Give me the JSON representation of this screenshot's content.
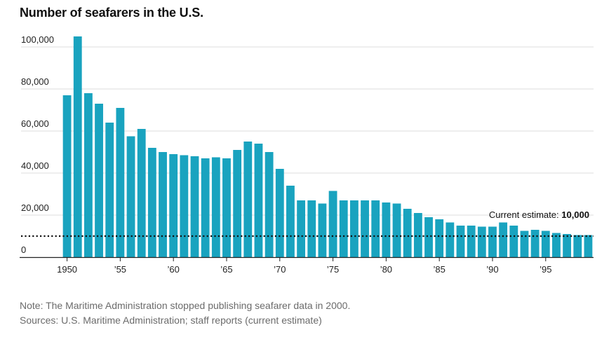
{
  "title": "Number of seafarers in the U.S.",
  "notes": {
    "note": "Note: The Maritime Administration stopped publishing seafarer data in 2000.",
    "sources": "Sources: U.S. Maritime Administration; staff reports (current estimate)"
  },
  "chart_data": {
    "type": "bar",
    "title": "Number of seafarers in the U.S.",
    "xlabel": "",
    "ylabel": "",
    "ylim": [
      0,
      100000
    ],
    "yticks": [
      0,
      20000,
      40000,
      60000,
      80000,
      100000
    ],
    "ytick_labels": [
      "0",
      "20,000",
      "40,000",
      "60,000",
      "80,000",
      "100,000"
    ],
    "x_tick_labels": [
      {
        "year": 1950,
        "label": "1950"
      },
      {
        "year": 1955,
        "label": "’55"
      },
      {
        "year": 1960,
        "label": "’60"
      },
      {
        "year": 1965,
        "label": "’65"
      },
      {
        "year": 1970,
        "label": "’70"
      },
      {
        "year": 1975,
        "label": "’75"
      },
      {
        "year": 1980,
        "label": "’80"
      },
      {
        "year": 1985,
        "label": "’85"
      },
      {
        "year": 1990,
        "label": "’90"
      },
      {
        "year": 1995,
        "label": "’95"
      }
    ],
    "grid": true,
    "bar_color": "#19a3bf",
    "categories": [
      1950,
      1951,
      1952,
      1953,
      1954,
      1955,
      1956,
      1957,
      1958,
      1959,
      1960,
      1961,
      1962,
      1963,
      1964,
      1965,
      1966,
      1967,
      1968,
      1969,
      1970,
      1971,
      1972,
      1973,
      1974,
      1975,
      1976,
      1977,
      1978,
      1979,
      1980,
      1981,
      1982,
      1983,
      1984,
      1985,
      1986,
      1987,
      1988,
      1989,
      1990,
      1991,
      1992,
      1993,
      1994,
      1995,
      1996,
      1997,
      1998,
      1999
    ],
    "values": [
      77000,
      105000,
      78000,
      73000,
      64000,
      71000,
      57500,
      61000,
      52000,
      50000,
      49000,
      48500,
      48000,
      47000,
      47500,
      47000,
      51000,
      55000,
      54000,
      50000,
      42000,
      34000,
      27000,
      27000,
      25500,
      31500,
      27000,
      27000,
      27000,
      27000,
      26000,
      25500,
      23000,
      21000,
      19000,
      18000,
      16500,
      15000,
      15000,
      14500,
      14500,
      16500,
      15000,
      12500,
      13000,
      12500,
      11500,
      11000,
      10500,
      10500
    ],
    "reference_line": {
      "value": 10000,
      "label": "Current estimate:",
      "value_label": "10,000"
    }
  }
}
